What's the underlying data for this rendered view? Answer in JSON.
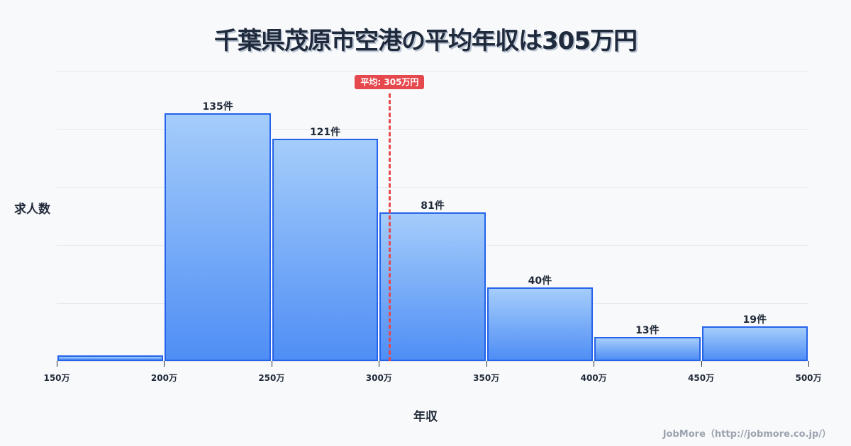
{
  "title": "千葉県茂原市空港の平均年収は305万円",
  "footer": "JobMore（http://jobmore.co.jp/）",
  "mean_badge": "平均: 305万円",
  "chart_data": {
    "type": "bar",
    "title": "千葉県茂原市空港の平均年収は305万円",
    "xlabel": "年収",
    "ylabel": "求人数",
    "categories": [
      "150-200万",
      "200-250万",
      "250-300万",
      "300-350万",
      "350-400万",
      "400-450万",
      "450-500万"
    ],
    "values": [
      3,
      135,
      121,
      81,
      40,
      13,
      19
    ],
    "value_labels": [
      "",
      "135件",
      "121件",
      "81件",
      "40件",
      "13件",
      "19件"
    ],
    "x_ticks": [
      "150万",
      "200万",
      "250万",
      "300万",
      "350万",
      "400万",
      "450万",
      "500万"
    ],
    "xlim": [
      150,
      500
    ],
    "ylim": [
      0,
      158
    ],
    "grid": true,
    "mean": 305,
    "mean_label": "平均: 305万円",
    "bar_color": "#4f8ef5",
    "bar_border": "#2563eb",
    "mean_color": "#e5484d"
  }
}
